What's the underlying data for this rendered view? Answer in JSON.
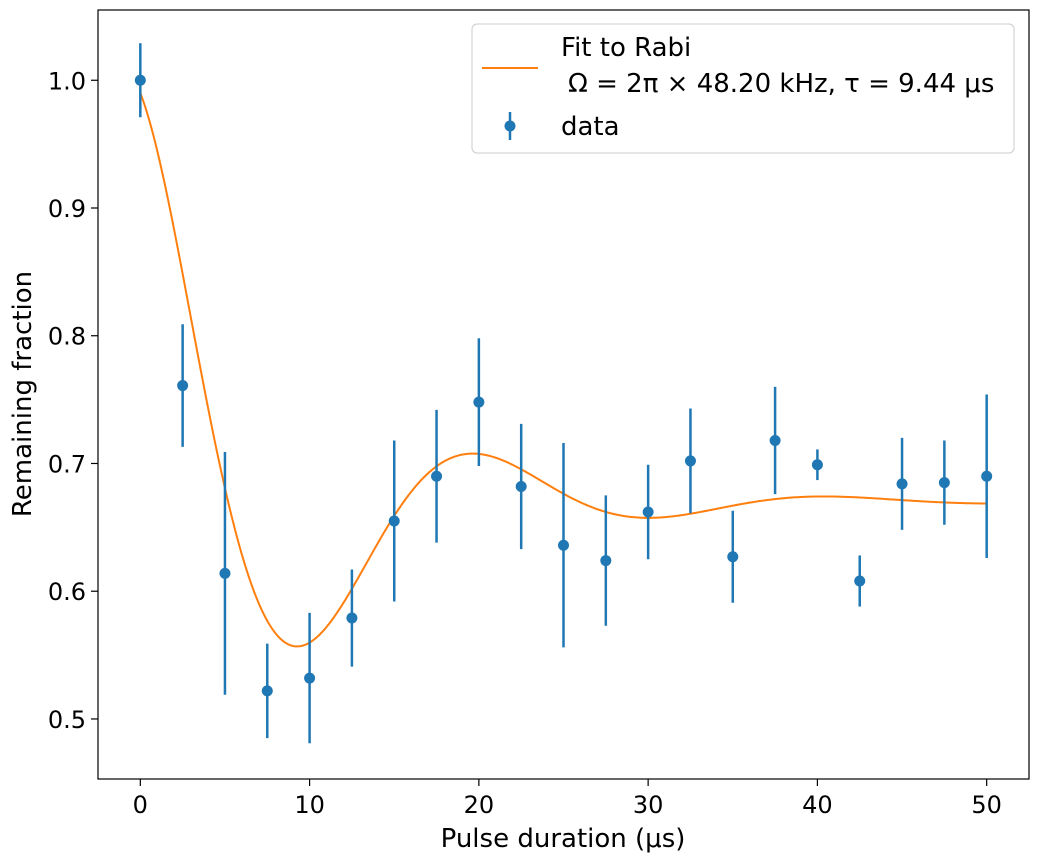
{
  "chart_data": {
    "type": "scatter",
    "xlabel": "Pulse duration (μs)",
    "ylabel": "Remaining fraction",
    "xlim": [
      -2.5,
      52.5
    ],
    "ylim": [
      0.453,
      1.055
    ],
    "x_ticks": [
      0,
      10,
      20,
      30,
      40,
      50
    ],
    "x_tick_labels": [
      "0",
      "10",
      "20",
      "30",
      "40",
      "50"
    ],
    "y_ticks": [
      0.5,
      0.6,
      0.7,
      0.8,
      0.9,
      1.0
    ],
    "y_tick_labels": [
      "0.5",
      "0.6",
      "0.7",
      "0.8",
      "0.9",
      "1.0"
    ],
    "grid": false,
    "legend_position": "top-right",
    "colors": {
      "data": "#1f77b4",
      "fit": "#ff7f0e"
    },
    "series": [
      {
        "name": "data",
        "type": "errorbar",
        "x": [
          0,
          2.5,
          5,
          7.5,
          10,
          12.5,
          15,
          17.5,
          20,
          22.5,
          25,
          27.5,
          30,
          32.5,
          35,
          37.5,
          40,
          42.5,
          45,
          47.5,
          50
        ],
        "y": [
          1.0,
          0.761,
          0.614,
          0.522,
          0.532,
          0.579,
          0.655,
          0.69,
          0.748,
          0.682,
          0.636,
          0.624,
          0.662,
          0.702,
          0.627,
          0.718,
          0.699,
          0.608,
          0.684,
          0.685,
          0.69
        ],
        "yerr": [
          0.029,
          0.048,
          0.095,
          0.037,
          0.051,
          0.038,
          0.063,
          0.052,
          0.05,
          0.049,
          0.08,
          0.051,
          0.037,
          0.041,
          0.036,
          0.042,
          0.012,
          0.02,
          0.036,
          0.033,
          0.064
        ]
      },
      {
        "name": "Fit to Rabi\n Ω = 2π × 48.20 kHz, τ = 9.44 μs",
        "type": "line",
        "model": {
          "offset": 0.67,
          "amplitude": 0.32,
          "rabi_frequency_khz": 48.2,
          "tau_us": 9.44,
          "x_range": [
            0,
            50
          ]
        }
      }
    ],
    "legend": {
      "fit_label_line1": "Fit to Rabi",
      "fit_label_line2": "Ω = 2π × 48.20 kHz, τ = 9.44 μs",
      "data_label": "data"
    }
  }
}
